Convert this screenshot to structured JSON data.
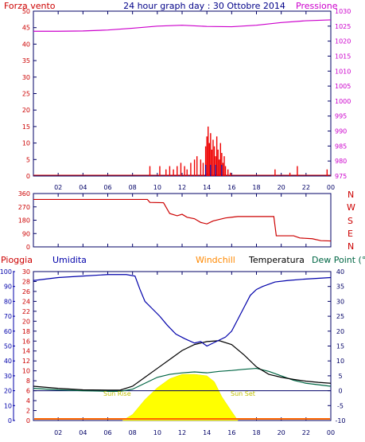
{
  "header": {
    "left_label": "Forza vento",
    "title": "24 hour graph day : 30 Ottobre 2014",
    "right_label": "Pressione"
  },
  "colors": {
    "wind": "#cc0000",
    "pressure": "#cc00cc",
    "direction": "#cc0000",
    "rain": "#cc0000",
    "humidity": "#0000aa",
    "windchill": "#ff8800",
    "temperature": "#000000",
    "dewpoint": "#006644",
    "sun": "#ffff00",
    "frame": "#000066"
  },
  "panel2": {
    "dir_labels": [
      "N",
      "W",
      "S",
      "E",
      "N"
    ]
  },
  "panel3": {
    "labels": {
      "rain": "Pioggia",
      "humidity": "Umidita",
      "windchill": "Windchill",
      "temperature": "Temperatura",
      "dewpoint": "Dew Point (°C"
    },
    "sun_rise": "Sun Rise",
    "sun_set": "Sun Set"
  },
  "chart_data": [
    {
      "type": "bar",
      "name": "wind-speed-and-pressure",
      "y_left_ticks": [
        0,
        5,
        10,
        15,
        20,
        25,
        30,
        35,
        40,
        45,
        50
      ],
      "y_left_lim": [
        0,
        50
      ],
      "y_right_ticks": [
        975,
        980,
        985,
        990,
        995,
        1000,
        1005,
        1010,
        1015,
        1020,
        1025,
        1030
      ],
      "y_right_lim": [
        975,
        1030
      ],
      "x_ticks": [
        "02",
        "04",
        "06",
        "08",
        "10",
        "12",
        "14",
        "16",
        "18",
        "20",
        "22",
        "00"
      ],
      "pressure": [
        {
          "h": 0,
          "v": 1023.3
        },
        {
          "h": 2,
          "v": 1023.3
        },
        {
          "h": 4,
          "v": 1023.4
        },
        {
          "h": 6,
          "v": 1023.7
        },
        {
          "h": 8,
          "v": 1024.3
        },
        {
          "h": 10,
          "v": 1025.0
        },
        {
          "h": 12,
          "v": 1025.3
        },
        {
          "h": 14,
          "v": 1024.9
        },
        {
          "h": 16,
          "v": 1024.8
        },
        {
          "h": 18,
          "v": 1025.3
        },
        {
          "h": 20,
          "v": 1026.2
        },
        {
          "h": 22,
          "v": 1026.8
        },
        {
          "h": 24,
          "v": 1027.1
        }
      ],
      "wind_spikes": [
        {
          "h": 9.4,
          "v": 3
        },
        {
          "h": 10.2,
          "v": 3
        },
        {
          "h": 10.7,
          "v": 2
        },
        {
          "h": 11.0,
          "v": 3
        },
        {
          "h": 11.3,
          "v": 2
        },
        {
          "h": 11.6,
          "v": 3
        },
        {
          "h": 11.9,
          "v": 4
        },
        {
          "h": 12.2,
          "v": 3
        },
        {
          "h": 12.4,
          "v": 2
        },
        {
          "h": 12.7,
          "v": 4
        },
        {
          "h": 13.0,
          "v": 5
        },
        {
          "h": 13.2,
          "v": 6
        },
        {
          "h": 13.5,
          "v": 5
        },
        {
          "h": 13.7,
          "v": 4
        },
        {
          "h": 13.9,
          "v": 9
        },
        {
          "h": 14.0,
          "v": 12
        },
        {
          "h": 14.1,
          "v": 15
        },
        {
          "h": 14.2,
          "v": 10
        },
        {
          "h": 14.3,
          "v": 13
        },
        {
          "h": 14.4,
          "v": 8
        },
        {
          "h": 14.5,
          "v": 11
        },
        {
          "h": 14.6,
          "v": 9
        },
        {
          "h": 14.7,
          "v": 6
        },
        {
          "h": 14.8,
          "v": 12
        },
        {
          "h": 14.9,
          "v": 8
        },
        {
          "h": 15.0,
          "v": 5
        },
        {
          "h": 15.1,
          "v": 10
        },
        {
          "h": 15.2,
          "v": 7
        },
        {
          "h": 15.3,
          "v": 4
        },
        {
          "h": 15.4,
          "v": 6
        },
        {
          "h": 15.5,
          "v": 3
        },
        {
          "h": 15.7,
          "v": 2
        },
        {
          "h": 15.9,
          "v": 1
        },
        {
          "h": 19.5,
          "v": 2
        },
        {
          "h": 20.7,
          "v": 1
        },
        {
          "h": 21.3,
          "v": 3
        },
        {
          "h": 23.7,
          "v": 2
        }
      ]
    },
    {
      "type": "line",
      "name": "wind-direction",
      "y_ticks": [
        0,
        90,
        180,
        270,
        360
      ],
      "y_lim": [
        0,
        360
      ],
      "x_ticks": [
        "02",
        "04",
        "06",
        "08",
        "10",
        "12",
        "14",
        "16",
        "18",
        "20",
        "22",
        "00"
      ],
      "direction": [
        {
          "h": 0,
          "v": 320
        },
        {
          "h": 9.2,
          "v": 320
        },
        {
          "h": 9.4,
          "v": 300
        },
        {
          "h": 10.5,
          "v": 298
        },
        {
          "h": 11.0,
          "v": 225
        },
        {
          "h": 11.6,
          "v": 210
        },
        {
          "h": 12.0,
          "v": 220
        },
        {
          "h": 12.4,
          "v": 200
        },
        {
          "h": 13.0,
          "v": 190
        },
        {
          "h": 13.5,
          "v": 165
        },
        {
          "h": 14.0,
          "v": 155
        },
        {
          "h": 14.5,
          "v": 175
        },
        {
          "h": 15.0,
          "v": 185
        },
        {
          "h": 15.5,
          "v": 195
        },
        {
          "h": 16.0,
          "v": 200
        },
        {
          "h": 16.5,
          "v": 205
        },
        {
          "h": 19.4,
          "v": 205
        },
        {
          "h": 19.6,
          "v": 75
        },
        {
          "h": 21.0,
          "v": 75
        },
        {
          "h": 21.5,
          "v": 60
        },
        {
          "h": 22.5,
          "v": 55
        },
        {
          "h": 23.2,
          "v": 42
        },
        {
          "h": 24,
          "v": 40
        }
      ]
    },
    {
      "type": "line",
      "name": "rain-humidity-temperature",
      "y_rain_ticks": [
        0,
        2,
        4,
        6,
        8,
        10,
        12,
        14,
        16,
        18,
        20,
        22,
        24,
        26,
        28,
        30
      ],
      "y_humidity_ticks": [
        0,
        10,
        20,
        30,
        40,
        50,
        60,
        70,
        80,
        90,
        100
      ],
      "y_temp_ticks": [
        -10,
        -5,
        0,
        5,
        10,
        15,
        20,
        25,
        30,
        35,
        40
      ],
      "y_temp_lim": [
        -10,
        40
      ],
      "x_ticks": [
        "02",
        "04",
        "06",
        "08",
        "10",
        "12",
        "14",
        "16",
        "18",
        "20",
        "22",
        "00"
      ],
      "humidity": [
        {
          "h": 0,
          "v": 94
        },
        {
          "h": 2,
          "v": 96
        },
        {
          "h": 4,
          "v": 97
        },
        {
          "h": 6,
          "v": 98
        },
        {
          "h": 7.5,
          "v": 98
        },
        {
          "h": 8.2,
          "v": 97
        },
        {
          "h": 8.6,
          "v": 88
        },
        {
          "h": 9.0,
          "v": 80
        },
        {
          "h": 9.6,
          "v": 75
        },
        {
          "h": 10.2,
          "v": 70
        },
        {
          "h": 10.8,
          "v": 64
        },
        {
          "h": 11.5,
          "v": 58
        },
        {
          "h": 12.2,
          "v": 55
        },
        {
          "h": 13,
          "v": 52
        },
        {
          "h": 13.5,
          "v": 53
        },
        {
          "h": 14,
          "v": 50
        },
        {
          "h": 14.5,
          "v": 52
        },
        {
          "h": 15,
          "v": 54
        },
        {
          "h": 15.5,
          "v": 56
        },
        {
          "h": 16,
          "v": 60
        },
        {
          "h": 16.5,
          "v": 68
        },
        {
          "h": 17,
          "v": 76
        },
        {
          "h": 17.5,
          "v": 84
        },
        {
          "h": 18,
          "v": 88
        },
        {
          "h": 18.5,
          "v": 90
        },
        {
          "h": 19.5,
          "v": 93
        },
        {
          "h": 20.5,
          "v": 94
        },
        {
          "h": 22,
          "v": 95
        },
        {
          "h": 24,
          "v": 96
        }
      ],
      "temperature": [
        {
          "h": 0,
          "v": 1.5
        },
        {
          "h": 2,
          "v": 0.8
        },
        {
          "h": 4,
          "v": 0.3
        },
        {
          "h": 6,
          "v": 0.2
        },
        {
          "h": 7,
          "v": 0.2
        },
        {
          "h": 8,
          "v": 1.5
        },
        {
          "h": 9,
          "v": 4.5
        },
        {
          "h": 10,
          "v": 7.5
        },
        {
          "h": 11,
          "v": 10.5
        },
        {
          "h": 12,
          "v": 13.5
        },
        {
          "h": 13,
          "v": 15.5
        },
        {
          "h": 14,
          "v": 16.5
        },
        {
          "h": 15,
          "v": 16.8
        },
        {
          "h": 16,
          "v": 15.5
        },
        {
          "h": 17,
          "v": 12
        },
        {
          "h": 18,
          "v": 8
        },
        {
          "h": 19,
          "v": 5.5
        },
        {
          "h": 20,
          "v": 4.5
        },
        {
          "h": 21,
          "v": 3.8
        },
        {
          "h": 22,
          "v": 3.2
        },
        {
          "h": 23,
          "v": 2.8
        },
        {
          "h": 24,
          "v": 2.5
        }
      ],
      "dewpoint": [
        {
          "h": 0,
          "v": 0.8
        },
        {
          "h": 2,
          "v": 0.3
        },
        {
          "h": 4,
          "v": 0
        },
        {
          "h": 6,
          "v": -0.2
        },
        {
          "h": 7,
          "v": -0.2
        },
        {
          "h": 8,
          "v": 0.5
        },
        {
          "h": 9,
          "v": 2.5
        },
        {
          "h": 10,
          "v": 4.5
        },
        {
          "h": 11,
          "v": 5.5
        },
        {
          "h": 12,
          "v": 6
        },
        {
          "h": 13,
          "v": 6.3
        },
        {
          "h": 14,
          "v": 6
        },
        {
          "h": 15,
          "v": 6.5
        },
        {
          "h": 16,
          "v": 6.8
        },
        {
          "h": 17,
          "v": 7.2
        },
        {
          "h": 18,
          "v": 7.5
        },
        {
          "h": 19,
          "v": 6.5
        },
        {
          "h": 20,
          "v": 5
        },
        {
          "h": 21,
          "v": 3.5
        },
        {
          "h": 22,
          "v": 2.5
        },
        {
          "h": 23,
          "v": 2
        },
        {
          "h": 24,
          "v": 1.5
        }
      ],
      "solar": [
        {
          "h": 7.2,
          "v": -10
        },
        {
          "h": 8,
          "v": -8
        },
        {
          "h": 9,
          "v": -3
        },
        {
          "h": 10,
          "v": 1
        },
        {
          "h": 11,
          "v": 4
        },
        {
          "h": 12,
          "v": 5.5
        },
        {
          "h": 13,
          "v": 5.5
        },
        {
          "h": 14,
          "v": 5
        },
        {
          "h": 14.6,
          "v": 3
        },
        {
          "h": 15.2,
          "v": -2
        },
        {
          "h": 16,
          "v": -7
        },
        {
          "h": 16.5,
          "v": -10
        }
      ]
    }
  ]
}
